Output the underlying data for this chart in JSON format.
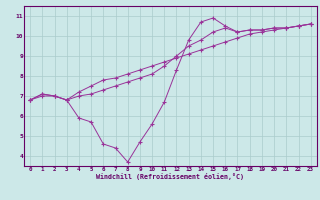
{
  "xlabel": "Windchill (Refroidissement éolien,°C)",
  "bg_color": "#cce8e8",
  "line_color": "#993399",
  "grid_color": "#aacccc",
  "axis_label_color": "#660066",
  "tick_label_color": "#660066",
  "spine_color": "#660066",
  "xlim": [
    -0.5,
    23.5
  ],
  "ylim": [
    3.5,
    11.5
  ],
  "yticks": [
    4,
    5,
    6,
    7,
    8,
    9,
    10,
    11
  ],
  "xticks": [
    0,
    1,
    2,
    3,
    4,
    5,
    6,
    7,
    8,
    9,
    10,
    11,
    12,
    13,
    14,
    15,
    16,
    17,
    18,
    19,
    20,
    21,
    22,
    23
  ],
  "line1_x": [
    0,
    1,
    2,
    3,
    4,
    5,
    6,
    7,
    8,
    9,
    10,
    11,
    12,
    13,
    14,
    15,
    16,
    17,
    18,
    19,
    20,
    21,
    22,
    23
  ],
  "line1_y": [
    6.8,
    7.1,
    7.0,
    6.8,
    5.9,
    5.7,
    4.6,
    4.4,
    3.7,
    4.7,
    5.6,
    6.7,
    8.3,
    9.8,
    10.7,
    10.9,
    10.5,
    10.2,
    10.3,
    10.3,
    10.4,
    10.4,
    10.5,
    10.6
  ],
  "line2_x": [
    0,
    1,
    2,
    3,
    4,
    5,
    6,
    7,
    8,
    9,
    10,
    11,
    12,
    13,
    14,
    15,
    16,
    17,
    18,
    19,
    20,
    21,
    22,
    23
  ],
  "line2_y": [
    6.8,
    7.1,
    7.0,
    6.8,
    7.2,
    7.5,
    7.8,
    7.9,
    8.1,
    8.3,
    8.5,
    8.7,
    8.9,
    9.1,
    9.3,
    9.5,
    9.7,
    9.9,
    10.1,
    10.2,
    10.3,
    10.4,
    10.5,
    10.6
  ],
  "line3_x": [
    0,
    1,
    2,
    3,
    4,
    5,
    6,
    7,
    8,
    9,
    10,
    11,
    12,
    13,
    14,
    15,
    16,
    17,
    18,
    19,
    20,
    21,
    22,
    23
  ],
  "line3_y": [
    6.8,
    7.0,
    7.0,
    6.8,
    7.0,
    7.1,
    7.3,
    7.5,
    7.7,
    7.9,
    8.1,
    8.5,
    9.0,
    9.5,
    9.8,
    10.2,
    10.4,
    10.2,
    10.3,
    10.3,
    10.4,
    10.4,
    10.5,
    10.6
  ]
}
